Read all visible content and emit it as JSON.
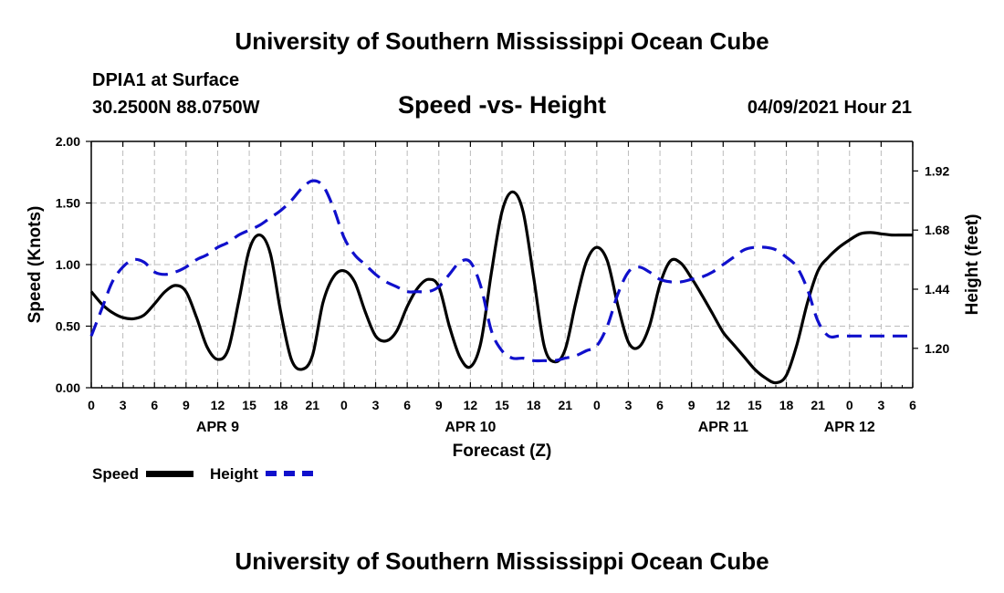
{
  "page": {
    "title_top": "University of Southern Mississippi Ocean Cube",
    "title_bottom": "University of Southern Mississippi Ocean Cube",
    "station": "DPIA1 at Surface",
    "location": "30.2500N  88.0750W",
    "chart_title": "Speed -vs- Height",
    "timestamp": "04/09/2021 Hour 21"
  },
  "legend": {
    "speed_label": "Speed",
    "height_label": "Height"
  },
  "colors": {
    "speed": "#000000",
    "height": "#1010cc",
    "grid": "#bbbbbb"
  },
  "chart_data": {
    "type": "line",
    "title": "Speed -vs- Height",
    "xlabel": "Forecast (Z)",
    "ylabel": "Speed (Knots)",
    "y2label": "Height (feet)",
    "xlim": [
      0,
      78
    ],
    "ylim": [
      0,
      2.0
    ],
    "y2lim": [
      1.04,
      2.04
    ],
    "x_ticks": [
      0,
      3,
      6,
      9,
      12,
      15,
      18,
      21,
      24,
      27,
      30,
      33,
      36,
      39,
      42,
      45,
      48,
      51,
      54,
      57,
      60,
      63,
      66,
      69,
      72,
      75,
      78
    ],
    "x_tick_labels": [
      "0",
      "3",
      "6",
      "9",
      "12",
      "15",
      "18",
      "21",
      "0",
      "3",
      "6",
      "9",
      "12",
      "15",
      "18",
      "21",
      "0",
      "3",
      "6",
      "9",
      "12",
      "15",
      "18",
      "21",
      "0",
      "3",
      "6"
    ],
    "y_ticks": [
      0,
      0.5,
      1.0,
      1.5,
      2.0
    ],
    "y_tick_labels": [
      "0.00",
      "0.50",
      "1.00",
      "1.50",
      "2.00"
    ],
    "y2_ticks": [
      1.2,
      1.44,
      1.68,
      1.92
    ],
    "y2_tick_labels": [
      "1.20",
      "1.44",
      "1.68",
      "1.92"
    ],
    "day_labels": [
      {
        "x": 12,
        "label": "APR 9"
      },
      {
        "x": 36,
        "label": "APR 10"
      },
      {
        "x": 60,
        "label": "APR 11"
      },
      {
        "x": 72,
        "label": "APR 12"
      }
    ],
    "grid": true,
    "series": [
      {
        "name": "Speed",
        "axis": "left",
        "style": "solid",
        "x": [
          0,
          1,
          2,
          3,
          4,
          5,
          6,
          7,
          8,
          9,
          10,
          11,
          12,
          13,
          14,
          15,
          16,
          17,
          18,
          19,
          20,
          21,
          22,
          23,
          24,
          25,
          26,
          27,
          28,
          29,
          30,
          31,
          32,
          33,
          34,
          35,
          36,
          37,
          38,
          39,
          40,
          41,
          42,
          43,
          44,
          45,
          46,
          47,
          48,
          49,
          50,
          51,
          52,
          53,
          54,
          55,
          56,
          57,
          58,
          59,
          60,
          61,
          62,
          63,
          64,
          65,
          66,
          67,
          68,
          69,
          70,
          71,
          72,
          73,
          74,
          75,
          76,
          77,
          78
        ],
        "values": [
          0.78,
          0.68,
          0.61,
          0.57,
          0.56,
          0.59,
          0.68,
          0.78,
          0.83,
          0.78,
          0.57,
          0.33,
          0.23,
          0.31,
          0.7,
          1.12,
          1.24,
          1.09,
          0.61,
          0.23,
          0.15,
          0.26,
          0.69,
          0.9,
          0.95,
          0.86,
          0.62,
          0.42,
          0.38,
          0.46,
          0.66,
          0.81,
          0.88,
          0.82,
          0.5,
          0.25,
          0.17,
          0.37,
          0.94,
          1.43,
          1.59,
          1.43,
          0.9,
          0.34,
          0.21,
          0.31,
          0.69,
          1.02,
          1.14,
          1.03,
          0.67,
          0.37,
          0.33,
          0.5,
          0.84,
          1.03,
          1.01,
          0.89,
          0.75,
          0.6,
          0.45,
          0.35,
          0.25,
          0.15,
          0.08,
          0.04,
          0.1,
          0.35,
          0.69,
          0.95,
          1.06,
          1.14,
          1.2,
          1.25,
          1.26,
          1.25,
          1.24,
          1.24,
          1.24
        ]
      },
      {
        "name": "Height",
        "axis": "right",
        "style": "dashed",
        "x": [
          0,
          1,
          2,
          3,
          4,
          5,
          6,
          7,
          8,
          9,
          10,
          11,
          12,
          13,
          14,
          15,
          16,
          17,
          18,
          19,
          20,
          21,
          22,
          23,
          24,
          25,
          26,
          27,
          28,
          29,
          30,
          31,
          32,
          33,
          34,
          35,
          36,
          37,
          38,
          39,
          40,
          41,
          42,
          43,
          44,
          45,
          46,
          47,
          48,
          49,
          50,
          51,
          52,
          53,
          54,
          55,
          56,
          57,
          58,
          59,
          60,
          61,
          62,
          63,
          64,
          65,
          66,
          67,
          68,
          69,
          70,
          71,
          72,
          73,
          74,
          75,
          76,
          77,
          78
        ],
        "values": [
          1.25,
          1.36,
          1.47,
          1.53,
          1.56,
          1.55,
          1.51,
          1.5,
          1.51,
          1.53,
          1.56,
          1.58,
          1.61,
          1.63,
          1.66,
          1.68,
          1.7,
          1.73,
          1.76,
          1.8,
          1.85,
          1.88,
          1.86,
          1.77,
          1.65,
          1.58,
          1.54,
          1.5,
          1.47,
          1.45,
          1.43,
          1.43,
          1.43,
          1.45,
          1.5,
          1.55,
          1.55,
          1.45,
          1.27,
          1.19,
          1.16,
          1.16,
          1.15,
          1.15,
          1.15,
          1.16,
          1.17,
          1.19,
          1.21,
          1.29,
          1.42,
          1.51,
          1.53,
          1.51,
          1.48,
          1.47,
          1.47,
          1.48,
          1.49,
          1.51,
          1.54,
          1.57,
          1.6,
          1.61,
          1.61,
          1.6,
          1.57,
          1.53,
          1.44,
          1.31,
          1.25,
          1.25,
          1.25,
          1.25,
          1.25,
          1.25,
          1.25,
          1.25,
          1.25
        ]
      }
    ]
  }
}
